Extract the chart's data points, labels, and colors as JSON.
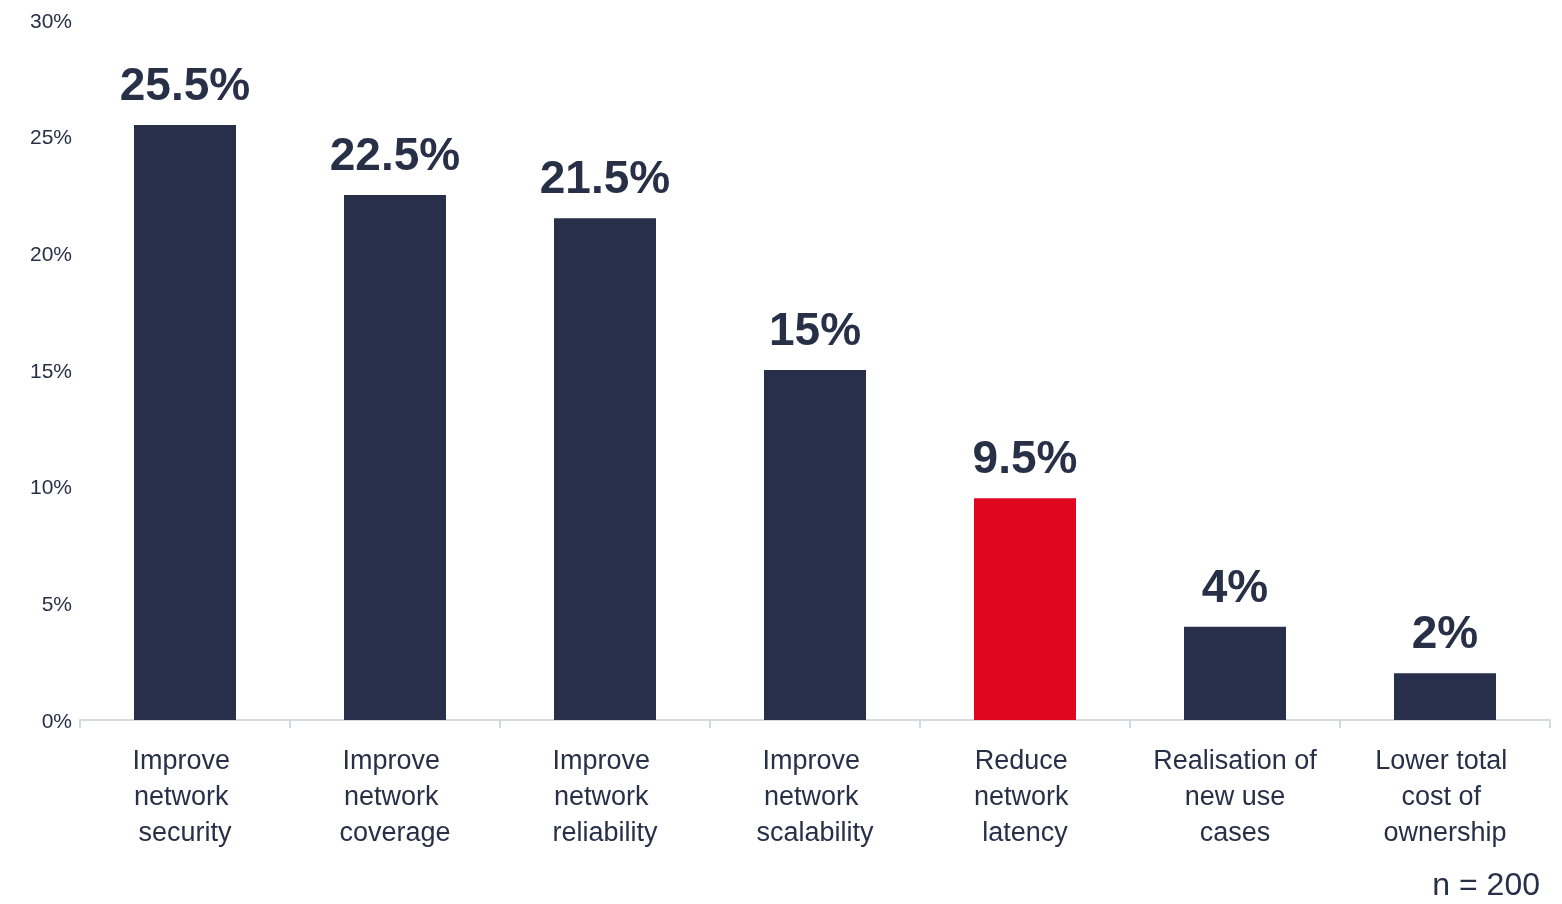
{
  "chart_data": {
    "type": "bar",
    "categories": [
      "Improve network security",
      "Improve network coverage",
      "Improve network reliability",
      "Improve network scalability",
      "Reduce network latency",
      "Realisation of new use cases",
      "Lower total cost of ownership"
    ],
    "values": [
      25.5,
      22.5,
      21.5,
      15,
      9.5,
      4,
      2
    ],
    "colors": [
      "#282f4a",
      "#282f4a",
      "#282f4a",
      "#282f4a",
      "#e1061f",
      "#282f4a",
      "#282f4a"
    ],
    "value_labels": [
      "25.5%",
      "22.5%",
      "21.5%",
      "15%",
      "9.5%",
      "4%",
      "2%"
    ],
    "ylim": [
      0,
      30
    ],
    "yticks": [
      {
        "value": 0,
        "label": "0%"
      },
      {
        "value": 5,
        "label": "5%"
      },
      {
        "value": 10,
        "label": "10%"
      },
      {
        "value": 15,
        "label": "15%"
      },
      {
        "value": 20,
        "label": "20%"
      },
      {
        "value": 25,
        "label": "25%"
      },
      {
        "value": 30,
        "label": "30%"
      }
    ],
    "grid": false,
    "annotations": [
      "n = 200"
    ]
  }
}
